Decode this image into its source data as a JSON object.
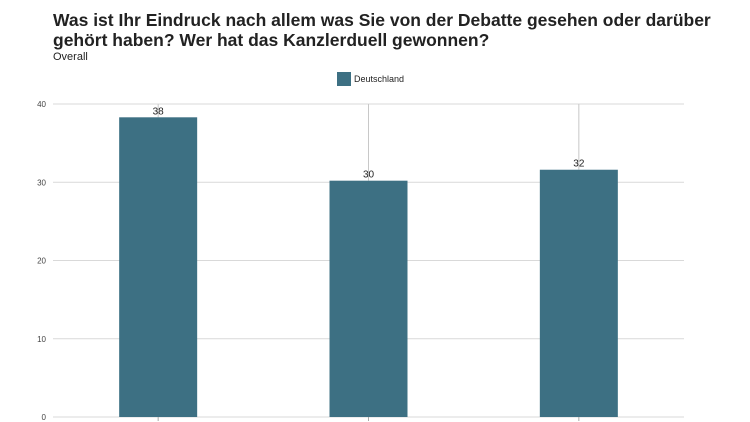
{
  "chart_data": {
    "type": "bar",
    "title": "Was ist Ihr Eindruck nach allem was Sie von der Debatte gesehen oder darüber gehört haben? Wer hat das Kanzlerduell gewonnen?",
    "subtitle": "Overall",
    "categories": [
      "",
      "",
      ""
    ],
    "series": [
      {
        "name": "Deutschland",
        "values": [
          38.3,
          30.2,
          31.6
        ],
        "data_labels": [
          "38",
          "30",
          "32"
        ],
        "color": "#3d7083"
      }
    ],
    "y_ticks": [
      "0",
      "10",
      "20",
      "30",
      "40"
    ],
    "ylim": [
      0,
      40
    ],
    "grid": true,
    "legend_position": "top-center"
  }
}
